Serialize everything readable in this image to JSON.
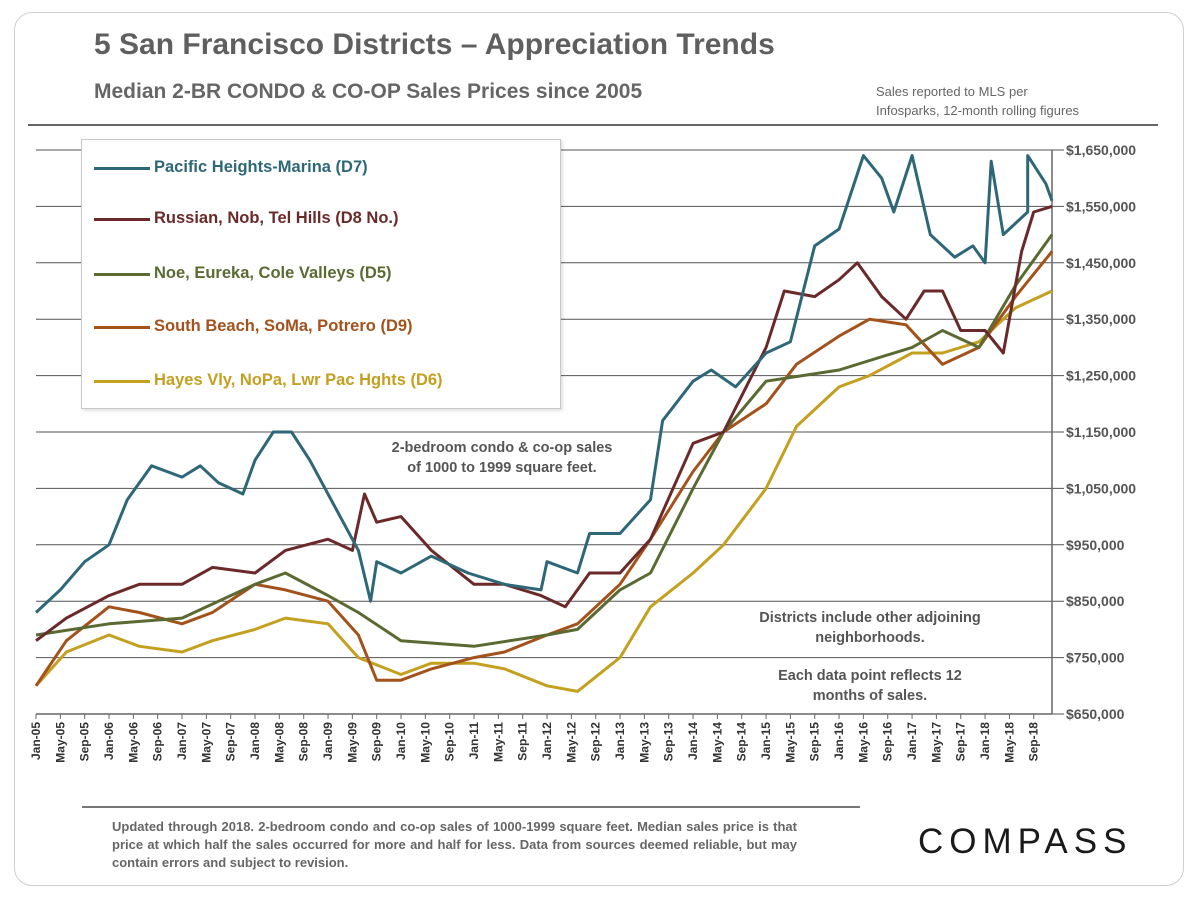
{
  "header": {
    "title": "5 San Francisco Districts – Appreciation Trends",
    "subtitle": "Median 2-BR CONDO & CO-OP Sales Prices since 2005",
    "source_note_line1": "Sales reported to MLS per",
    "source_note_line2": "Infosparks, 12-month rolling figures"
  },
  "annotations": {
    "size_note_line1": "2-bedroom condo & co-op sales",
    "size_note_line2": "of 1000 to 1999 square feet.",
    "district_note_line1": "Districts  include other adjoining",
    "district_note_line2": "neighborhoods.",
    "datapoint_note_line1": "Each data point reflects 12",
    "datapoint_note_line2": "months of sales."
  },
  "footer": {
    "footnote": "Updated through 2018. 2-bedroom condo and co-op sales of 1000-1999 square feet. Median sales price is that price at which half the sales occurred for more and half for less. Data from sources deemed reliable, but may contain errors and subject to revision.",
    "logo_text": "COMPASS"
  },
  "chart_data": {
    "type": "line",
    "ylim": [
      650000,
      1650000
    ],
    "y_ticks": [
      650000,
      750000,
      850000,
      950000,
      1050000,
      1150000,
      1250000,
      1350000,
      1450000,
      1550000,
      1650000
    ],
    "y_tick_labels": [
      "$650,000",
      "$750,000",
      "$850,000",
      "$950,000",
      "$1,050,000",
      "$1,150,000",
      "$1,250,000",
      "$1,350,000",
      "$1,450,000",
      "$1,550,000",
      "$1,650,000"
    ],
    "x_range": [
      "Jan-05",
      "Dec-18"
    ],
    "x_tick_labels": [
      "Jan-05",
      "May-05",
      "Sep-05",
      "Jan-06",
      "May-06",
      "Sep-06",
      "Jan-07",
      "May-07",
      "Sep-07",
      "Jan-08",
      "May-08",
      "Sep-08",
      "Jan-09",
      "May-09",
      "Sep-09",
      "Jan-10",
      "May-10",
      "Sep-10",
      "Jan-11",
      "May-11",
      "Sep-11",
      "Jan-12",
      "May-12",
      "Sep-12",
      "Jan-13",
      "May-13",
      "Sep-13",
      "Jan-14",
      "May-14",
      "Sep-14",
      "Jan-15",
      "May-15",
      "Sep-15",
      "Jan-16",
      "May-16",
      "Sep-16",
      "Jan-17",
      "May-17",
      "Sep-17",
      "Jan-18",
      "May-18",
      "Sep-18"
    ],
    "grid": true,
    "legend_position": "top-left",
    "series": [
      {
        "name": "Pacific Heights-Marina (D7)",
        "color": "#2e6878",
        "points": [
          [
            "Jan-05",
            830000
          ],
          [
            "May-05",
            870000
          ],
          [
            "Sep-05",
            920000
          ],
          [
            "Jan-06",
            950000
          ],
          [
            "Apr-06",
            1030000
          ],
          [
            "Aug-06",
            1090000
          ],
          [
            "Jan-07",
            1070000
          ],
          [
            "Apr-07",
            1090000
          ],
          [
            "Jul-07",
            1060000
          ],
          [
            "Nov-07",
            1040000
          ],
          [
            "Jan-08",
            1100000
          ],
          [
            "Apr-08",
            1150000
          ],
          [
            "Jul-08",
            1150000
          ],
          [
            "Oct-08",
            1100000
          ],
          [
            "Jan-09",
            1040000
          ],
          [
            "Apr-09",
            980000
          ],
          [
            "Jun-09",
            940000
          ],
          [
            "Aug-09",
            850000
          ],
          [
            "Sep-09",
            920000
          ],
          [
            "Jan-10",
            900000
          ],
          [
            "Jun-10",
            930000
          ],
          [
            "Dec-10",
            900000
          ],
          [
            "Jun-11",
            880000
          ],
          [
            "Dec-11",
            870000
          ],
          [
            "Jan-12",
            920000
          ],
          [
            "Jun-12",
            900000
          ],
          [
            "Aug-12",
            970000
          ],
          [
            "Jan-13",
            970000
          ],
          [
            "Jun-13",
            1030000
          ],
          [
            "Aug-13",
            1170000
          ],
          [
            "Jan-14",
            1240000
          ],
          [
            "Apr-14",
            1260000
          ],
          [
            "Aug-14",
            1230000
          ],
          [
            "Jan-15",
            1290000
          ],
          [
            "May-15",
            1310000
          ],
          [
            "Sep-15",
            1480000
          ],
          [
            "Jan-16",
            1510000
          ],
          [
            "May-16",
            1640000
          ],
          [
            "Aug-16",
            1600000
          ],
          [
            "Oct-16",
            1540000
          ],
          [
            "Jan-17",
            1640000
          ],
          [
            "Apr-17",
            1500000
          ],
          [
            "Aug-17",
            1460000
          ],
          [
            "Nov-17",
            1480000
          ],
          [
            "Jan-18",
            1450000
          ],
          [
            "Apr-18",
            1500000
          ],
          [
            "Aug-18",
            1540000
          ],
          [
            "Nov-18",
            1590000
          ],
          [
            "Feb-18",
            1630000
          ],
          [
            "Aug-18",
            1640000
          ],
          [
            "Dec-18",
            1560000
          ]
        ]
      },
      {
        "name": "Russian, Nob, Tel Hills (D8 No.)",
        "color": "#6b2a2a",
        "points": [
          [
            "Jan-05",
            780000
          ],
          [
            "Jun-05",
            820000
          ],
          [
            "Jan-06",
            860000
          ],
          [
            "Jun-06",
            880000
          ],
          [
            "Jan-07",
            880000
          ],
          [
            "Jun-07",
            910000
          ],
          [
            "Jan-08",
            900000
          ],
          [
            "Jun-08",
            940000
          ],
          [
            "Jan-09",
            960000
          ],
          [
            "May-09",
            940000
          ],
          [
            "Jul-09",
            1040000
          ],
          [
            "Sep-09",
            990000
          ],
          [
            "Jan-10",
            1000000
          ],
          [
            "Jun-10",
            940000
          ],
          [
            "Jan-11",
            880000
          ],
          [
            "Jun-11",
            880000
          ],
          [
            "Dec-11",
            860000
          ],
          [
            "Apr-12",
            840000
          ],
          [
            "Aug-12",
            900000
          ],
          [
            "Jan-13",
            900000
          ],
          [
            "Jun-13",
            960000
          ],
          [
            "Jan-14",
            1130000
          ],
          [
            "Jun-14",
            1150000
          ],
          [
            "Jan-15",
            1300000
          ],
          [
            "Apr-15",
            1400000
          ],
          [
            "Sep-15",
            1390000
          ],
          [
            "Jan-16",
            1420000
          ],
          [
            "Apr-16",
            1450000
          ],
          [
            "Aug-16",
            1390000
          ],
          [
            "Dec-16",
            1350000
          ],
          [
            "Mar-17",
            1400000
          ],
          [
            "Jun-17",
            1400000
          ],
          [
            "Sep-17",
            1330000
          ],
          [
            "Jan-18",
            1330000
          ],
          [
            "Apr-18",
            1290000
          ],
          [
            "Jul-18",
            1470000
          ],
          [
            "Sep-18",
            1540000
          ],
          [
            "Dec-18",
            1550000
          ]
        ]
      },
      {
        "name": "Noe, Eureka, Cole Valleys (D5)",
        "color": "#5a6a32",
        "points": [
          [
            "Jan-05",
            790000
          ],
          [
            "Jan-06",
            810000
          ],
          [
            "Jan-07",
            820000
          ],
          [
            "Jan-08",
            880000
          ],
          [
            "Jun-08",
            900000
          ],
          [
            "Jan-09",
            860000
          ],
          [
            "Jun-09",
            830000
          ],
          [
            "Jan-10",
            780000
          ],
          [
            "Jan-11",
            770000
          ],
          [
            "Jan-12",
            790000
          ],
          [
            "Jun-12",
            800000
          ],
          [
            "Jan-13",
            870000
          ],
          [
            "Jun-13",
            900000
          ],
          [
            "Jan-14",
            1050000
          ],
          [
            "Jun-14",
            1150000
          ],
          [
            "Jan-15",
            1240000
          ],
          [
            "Jan-16",
            1260000
          ],
          [
            "Jan-17",
            1300000
          ],
          [
            "Jun-17",
            1330000
          ],
          [
            "Dec-17",
            1300000
          ],
          [
            "Jun-18",
            1410000
          ],
          [
            "Dec-18",
            1500000
          ]
        ]
      },
      {
        "name": "South Beach, SoMa, Potrero (D9)",
        "color": "#a3521c",
        "points": [
          [
            "Jan-05",
            700000
          ],
          [
            "Jun-05",
            780000
          ],
          [
            "Jan-06",
            840000
          ],
          [
            "Jun-06",
            830000
          ],
          [
            "Jan-07",
            810000
          ],
          [
            "Jun-07",
            830000
          ],
          [
            "Jan-08",
            880000
          ],
          [
            "Jun-08",
            870000
          ],
          [
            "Jan-09",
            850000
          ],
          [
            "Jun-09",
            790000
          ],
          [
            "Sep-09",
            710000
          ],
          [
            "Jan-10",
            710000
          ],
          [
            "Jun-10",
            730000
          ],
          [
            "Jan-11",
            750000
          ],
          [
            "Jun-11",
            760000
          ],
          [
            "Jan-12",
            790000
          ],
          [
            "Jun-12",
            810000
          ],
          [
            "Jan-13",
            880000
          ],
          [
            "Jun-13",
            960000
          ],
          [
            "Jan-14",
            1080000
          ],
          [
            "Jun-14",
            1150000
          ],
          [
            "Jan-15",
            1200000
          ],
          [
            "Jun-15",
            1270000
          ],
          [
            "Jan-16",
            1320000
          ],
          [
            "Jun-16",
            1350000
          ],
          [
            "Dec-16",
            1340000
          ],
          [
            "Jun-17",
            1270000
          ],
          [
            "Dec-17",
            1300000
          ],
          [
            "Jun-18",
            1390000
          ],
          [
            "Dec-18",
            1470000
          ]
        ]
      },
      {
        "name": "Hayes Vly, NoPa, Lwr Pac Hghts (D6)",
        "color": "#c4a020",
        "points": [
          [
            "Jan-05",
            700000
          ],
          [
            "Jun-05",
            760000
          ],
          [
            "Jan-06",
            790000
          ],
          [
            "Jun-06",
            770000
          ],
          [
            "Jan-07",
            760000
          ],
          [
            "Jun-07",
            780000
          ],
          [
            "Jan-08",
            800000
          ],
          [
            "Jun-08",
            820000
          ],
          [
            "Jan-09",
            810000
          ],
          [
            "Jun-09",
            750000
          ],
          [
            "Jan-10",
            720000
          ],
          [
            "Jun-10",
            740000
          ],
          [
            "Jan-11",
            740000
          ],
          [
            "Jun-11",
            730000
          ],
          [
            "Jan-12",
            700000
          ],
          [
            "Jun-12",
            690000
          ],
          [
            "Jan-13",
            750000
          ],
          [
            "Jun-13",
            840000
          ],
          [
            "Jan-14",
            900000
          ],
          [
            "Jun-14",
            950000
          ],
          [
            "Jan-15",
            1050000
          ],
          [
            "Jun-15",
            1160000
          ],
          [
            "Jan-16",
            1230000
          ],
          [
            "Jun-16",
            1250000
          ],
          [
            "Jan-17",
            1290000
          ],
          [
            "Jun-17",
            1290000
          ],
          [
            "Dec-17",
            1310000
          ],
          [
            "Jun-18",
            1370000
          ],
          [
            "Dec-18",
            1400000
          ]
        ]
      }
    ]
  }
}
